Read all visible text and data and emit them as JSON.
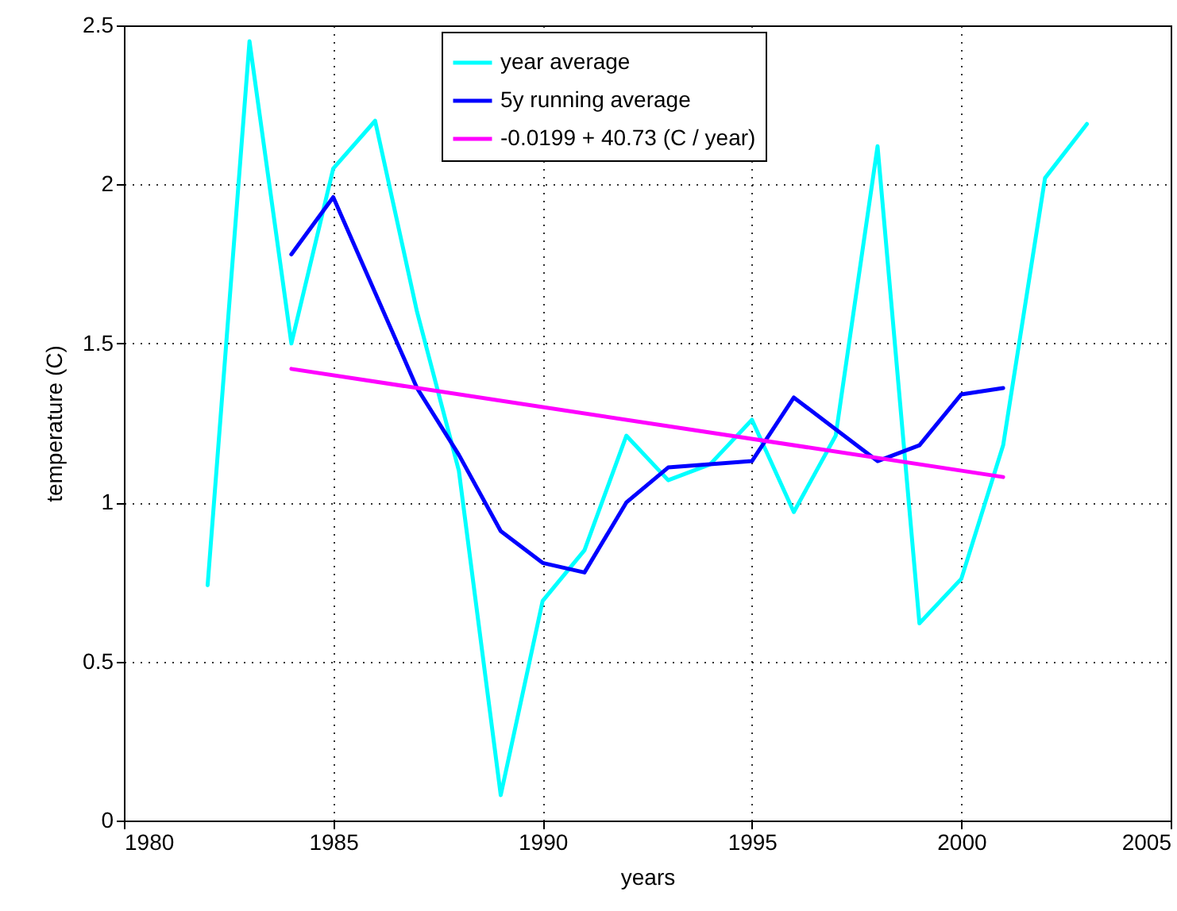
{
  "chart_data": {
    "type": "line",
    "xlabel": "years",
    "ylabel": "temperature (C)",
    "xlim": [
      1980,
      2005
    ],
    "xticks": [
      1980,
      1985,
      1990,
      1995,
      2000,
      2005
    ],
    "ylim": [
      0,
      2.5
    ],
    "yticks": [
      0,
      0.5,
      1,
      1.5,
      2,
      2.5
    ],
    "grid": true,
    "legend": "top",
    "series": [
      {
        "name": "year average",
        "color": "#00ffff",
        "x": [
          1982,
          1983,
          1984,
          1985,
          1986,
          1987,
          1988,
          1989,
          1990,
          1991,
          1992,
          1993,
          1994,
          1995,
          1996,
          1997,
          1998,
          1999,
          2000,
          2001,
          2002,
          2003
        ],
        "values": [
          0.74,
          2.45,
          1.5,
          2.05,
          2.2,
          1.6,
          1.1,
          0.08,
          0.69,
          0.85,
          1.21,
          1.07,
          1.12,
          1.26,
          0.97,
          1.21,
          2.12,
          0.62,
          0.76,
          1.18,
          2.02,
          2.19
        ]
      },
      {
        "name": "5y running average",
        "color": "#0000ff",
        "x": [
          1984,
          1985,
          1986,
          1987,
          1988,
          1989,
          1990,
          1991,
          1992,
          1993,
          1994,
          1995,
          1996,
          1997,
          1998,
          1999,
          2000,
          2001
        ],
        "values": [
          1.78,
          1.96,
          1.66,
          1.36,
          1.15,
          0.91,
          0.81,
          0.78,
          1.0,
          1.11,
          1.12,
          1.13,
          1.33,
          1.23,
          1.13,
          1.18,
          1.34,
          1.36
        ]
      },
      {
        "name": "-0.0199 + 40.73 (C / year)",
        "color": "#ff00ff",
        "x": [
          1984,
          2001
        ],
        "values": [
          1.42,
          1.08
        ]
      }
    ]
  }
}
